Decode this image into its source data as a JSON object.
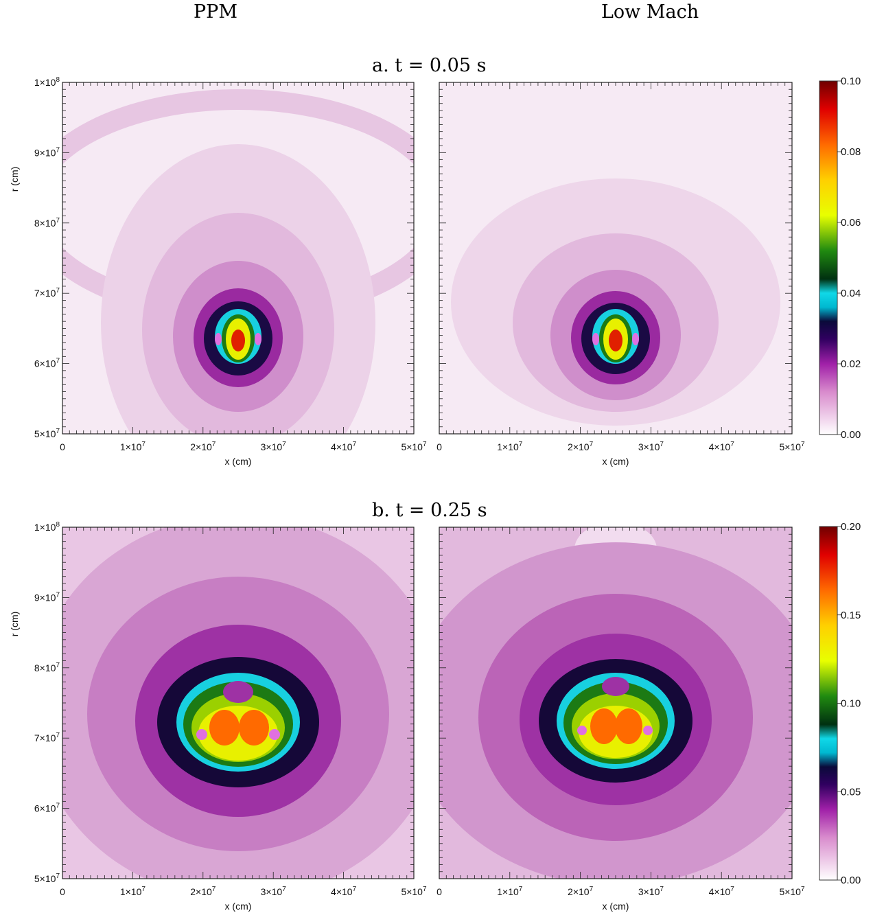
{
  "column_titles": [
    "PPM",
    "Low Mach"
  ],
  "rows": [
    {
      "title": "a. t = 0.05 s",
      "colorbar_ticks": [
        "0.10",
        "0.08",
        "0.06",
        "0.04",
        "0.02",
        "0.00"
      ],
      "colorbar_range": [
        0.0,
        0.1
      ]
    },
    {
      "title": "b. t = 0.25 s",
      "colorbar_ticks": [
        "0.20",
        "0.15",
        "0.10",
        "0.05",
        "0.00"
      ],
      "colorbar_range": [
        0.0,
        0.2
      ]
    }
  ],
  "x_axis": {
    "label": "x (cm)",
    "ticks": [
      {
        "mantissa": "0",
        "exp": ""
      },
      {
        "mantissa": "1×10",
        "exp": "7"
      },
      {
        "mantissa": "2×10",
        "exp": "7"
      },
      {
        "mantissa": "3×10",
        "exp": "7"
      },
      {
        "mantissa": "4×10",
        "exp": "7"
      },
      {
        "mantissa": "5×10",
        "exp": "7"
      }
    ]
  },
  "y_axis": {
    "label": "r (cm)",
    "ticks": [
      {
        "mantissa": "1×10",
        "exp": "8"
      },
      {
        "mantissa": "9×10",
        "exp": "7"
      },
      {
        "mantissa": "8×10",
        "exp": "7"
      },
      {
        "mantissa": "7×10",
        "exp": "7"
      },
      {
        "mantissa": "6×10",
        "exp": "7"
      },
      {
        "mantissa": "5×10",
        "exp": "7"
      }
    ]
  },
  "colormap_stops": [
    {
      "pos": 0.0,
      "color": "#ffffff"
    },
    {
      "pos": 0.12,
      "color": "#d98ccd"
    },
    {
      "pos": 0.2,
      "color": "#a020a8"
    },
    {
      "pos": 0.27,
      "color": "#300060"
    },
    {
      "pos": 0.32,
      "color": "#0a0a3a"
    },
    {
      "pos": 0.36,
      "color": "#00b8d0"
    },
    {
      "pos": 0.4,
      "color": "#10d8e8"
    },
    {
      "pos": 0.44,
      "color": "#003010"
    },
    {
      "pos": 0.52,
      "color": "#208a10"
    },
    {
      "pos": 0.62,
      "color": "#e8ff00"
    },
    {
      "pos": 0.72,
      "color": "#ffd000"
    },
    {
      "pos": 0.82,
      "color": "#ff6a00"
    },
    {
      "pos": 0.92,
      "color": "#e00000"
    },
    {
      "pos": 1.0,
      "color": "#700000"
    }
  ]
}
